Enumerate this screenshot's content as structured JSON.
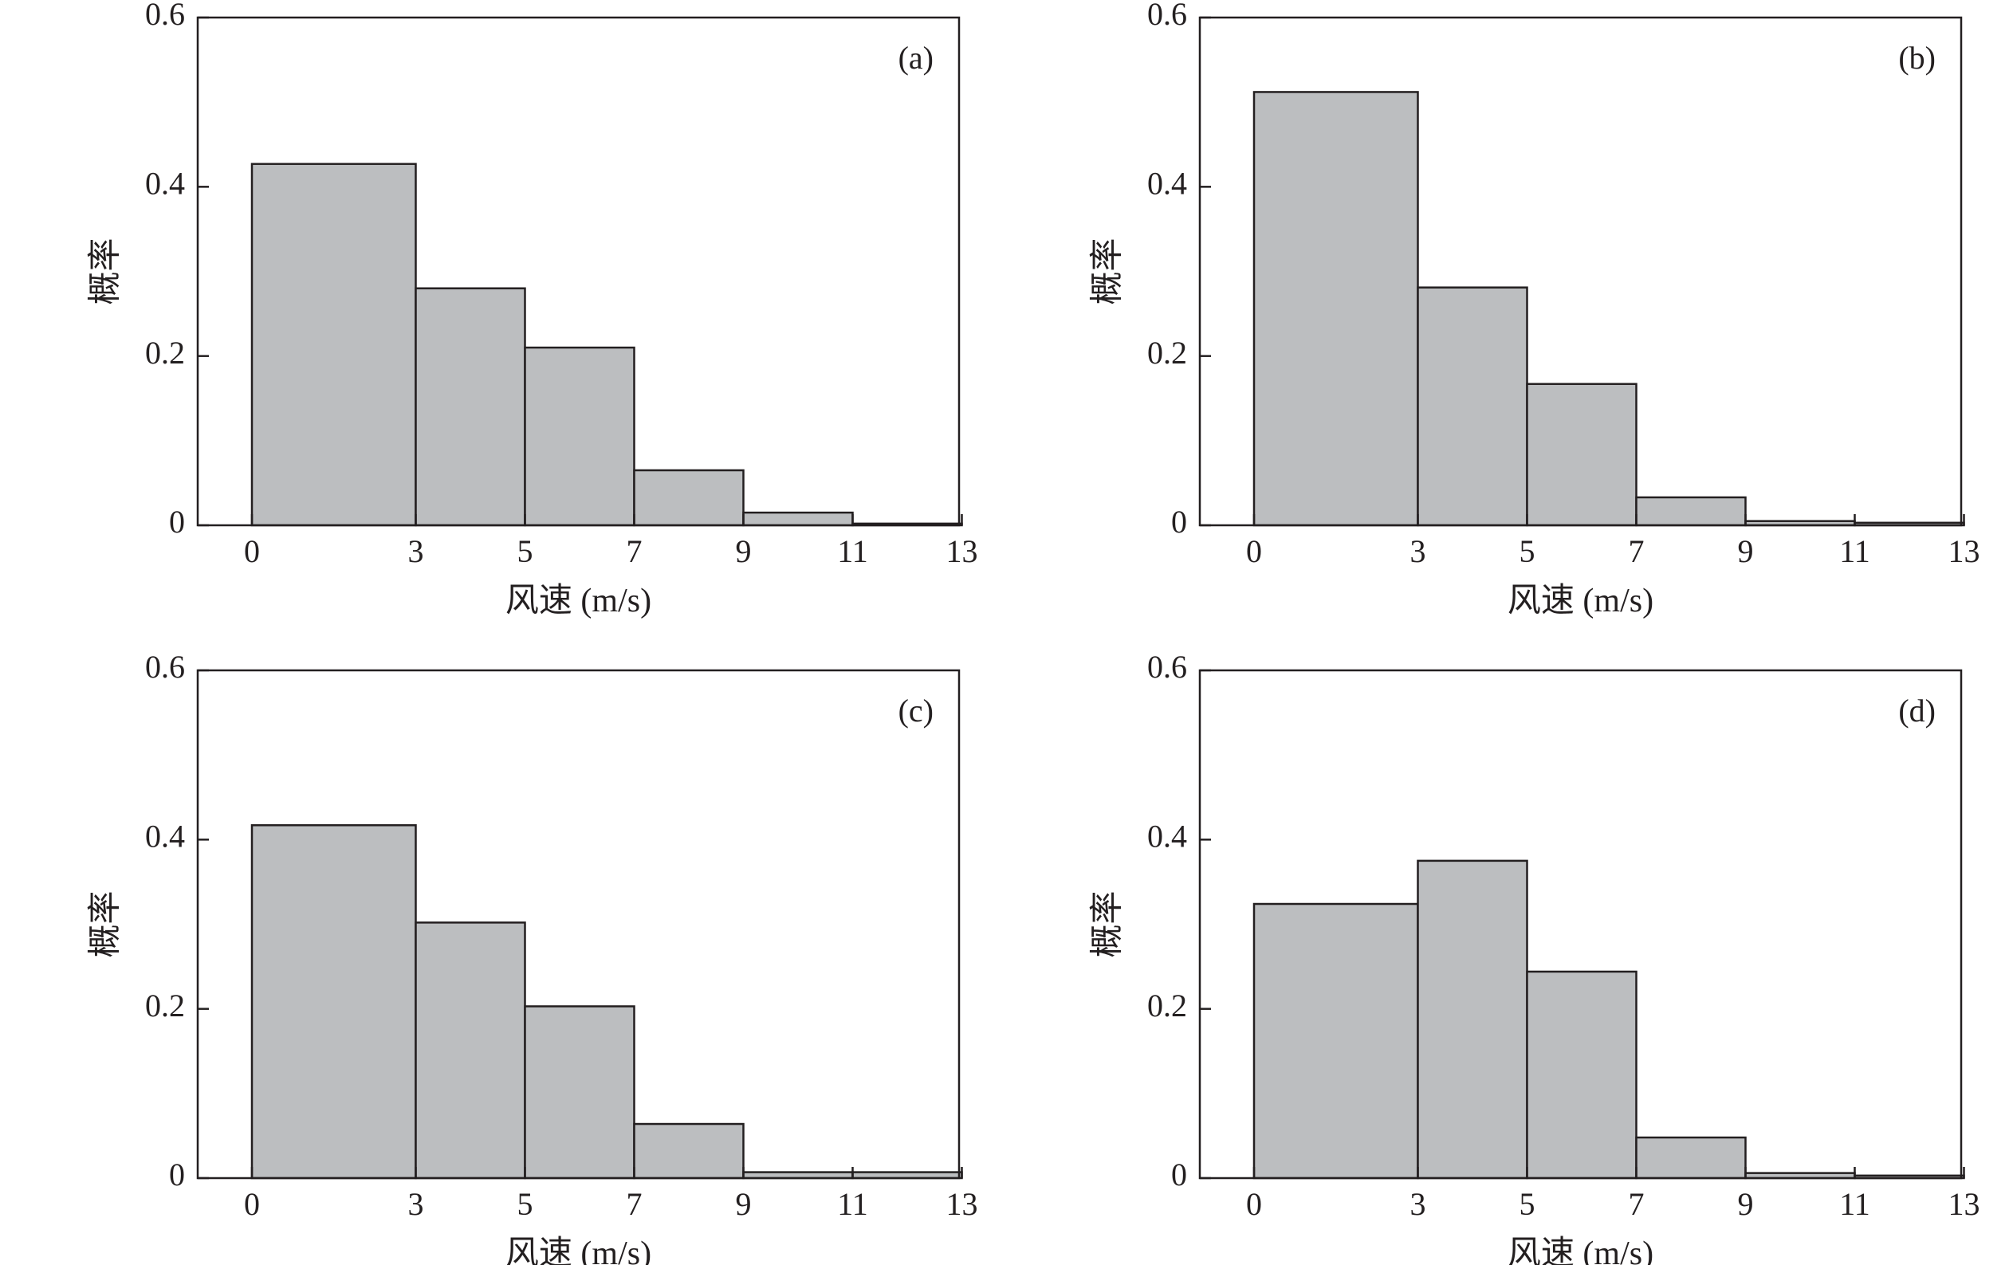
{
  "chart_data": [
    {
      "type": "bar",
      "panel_label": "(a)",
      "xlabel": "风速 (m/s)",
      "ylabel": "概率",
      "bin_edges": [
        0,
        3,
        5,
        7,
        9,
        11,
        13
      ],
      "x_tick_labels": [
        "0",
        "3",
        "5",
        "7",
        "9",
        "11",
        "13"
      ],
      "y_ticks": [
        0,
        0.2,
        0.4,
        0.6
      ],
      "y_tick_labels": [
        "0",
        "0.2",
        "0.4",
        "0.6"
      ],
      "ylim": [
        0,
        0.6
      ],
      "values": [
        0.427,
        0.28,
        0.21,
        0.065,
        0.015,
        0.002
      ],
      "grid": false,
      "bar_color": "#bcbec0"
    },
    {
      "type": "bar",
      "panel_label": "(b)",
      "xlabel": "风速 (m/s)",
      "ylabel": "概率",
      "bin_edges": [
        0,
        3,
        5,
        7,
        9,
        11,
        13
      ],
      "x_tick_labels": [
        "0",
        "3",
        "5",
        "7",
        "9",
        "11",
        "13"
      ],
      "y_ticks": [
        0,
        0.2,
        0.4,
        0.6
      ],
      "y_tick_labels": [
        "0",
        "0.2",
        "0.4",
        "0.6"
      ],
      "ylim": [
        0,
        0.6
      ],
      "values": [
        0.512,
        0.281,
        0.167,
        0.033,
        0.005,
        0.003
      ],
      "grid": false,
      "bar_color": "#bcbec0"
    },
    {
      "type": "bar",
      "panel_label": "(c)",
      "xlabel": "风速 (m/s)",
      "ylabel": "概率",
      "bin_edges": [
        0,
        3,
        5,
        7,
        9,
        11,
        13
      ],
      "x_tick_labels": [
        "0",
        "3",
        "5",
        "7",
        "9",
        "11",
        "13"
      ],
      "y_ticks": [
        0,
        0.2,
        0.4,
        0.6
      ],
      "y_tick_labels": [
        "0",
        "0.2",
        "0.4",
        "0.6"
      ],
      "ylim": [
        0,
        0.6
      ],
      "values": [
        0.417,
        0.302,
        0.203,
        0.064,
        0.007,
        0.007
      ],
      "grid": false,
      "bar_color": "#bcbec0"
    },
    {
      "type": "bar",
      "panel_label": "(d)",
      "xlabel": "风速 (m/s)",
      "ylabel": "概率",
      "bin_edges": [
        0,
        3,
        5,
        7,
        9,
        11,
        13
      ],
      "x_tick_labels": [
        "0",
        "3",
        "5",
        "7",
        "9",
        "11",
        "13"
      ],
      "y_ticks": [
        0,
        0.2,
        0.4,
        0.6
      ],
      "y_tick_labels": [
        "0",
        "0.2",
        "0.4",
        "0.6"
      ],
      "ylim": [
        0,
        0.6
      ],
      "values": [
        0.324,
        0.375,
        0.244,
        0.048,
        0.006,
        0.003
      ],
      "grid": false,
      "bar_color": "#bcbec0"
    }
  ]
}
